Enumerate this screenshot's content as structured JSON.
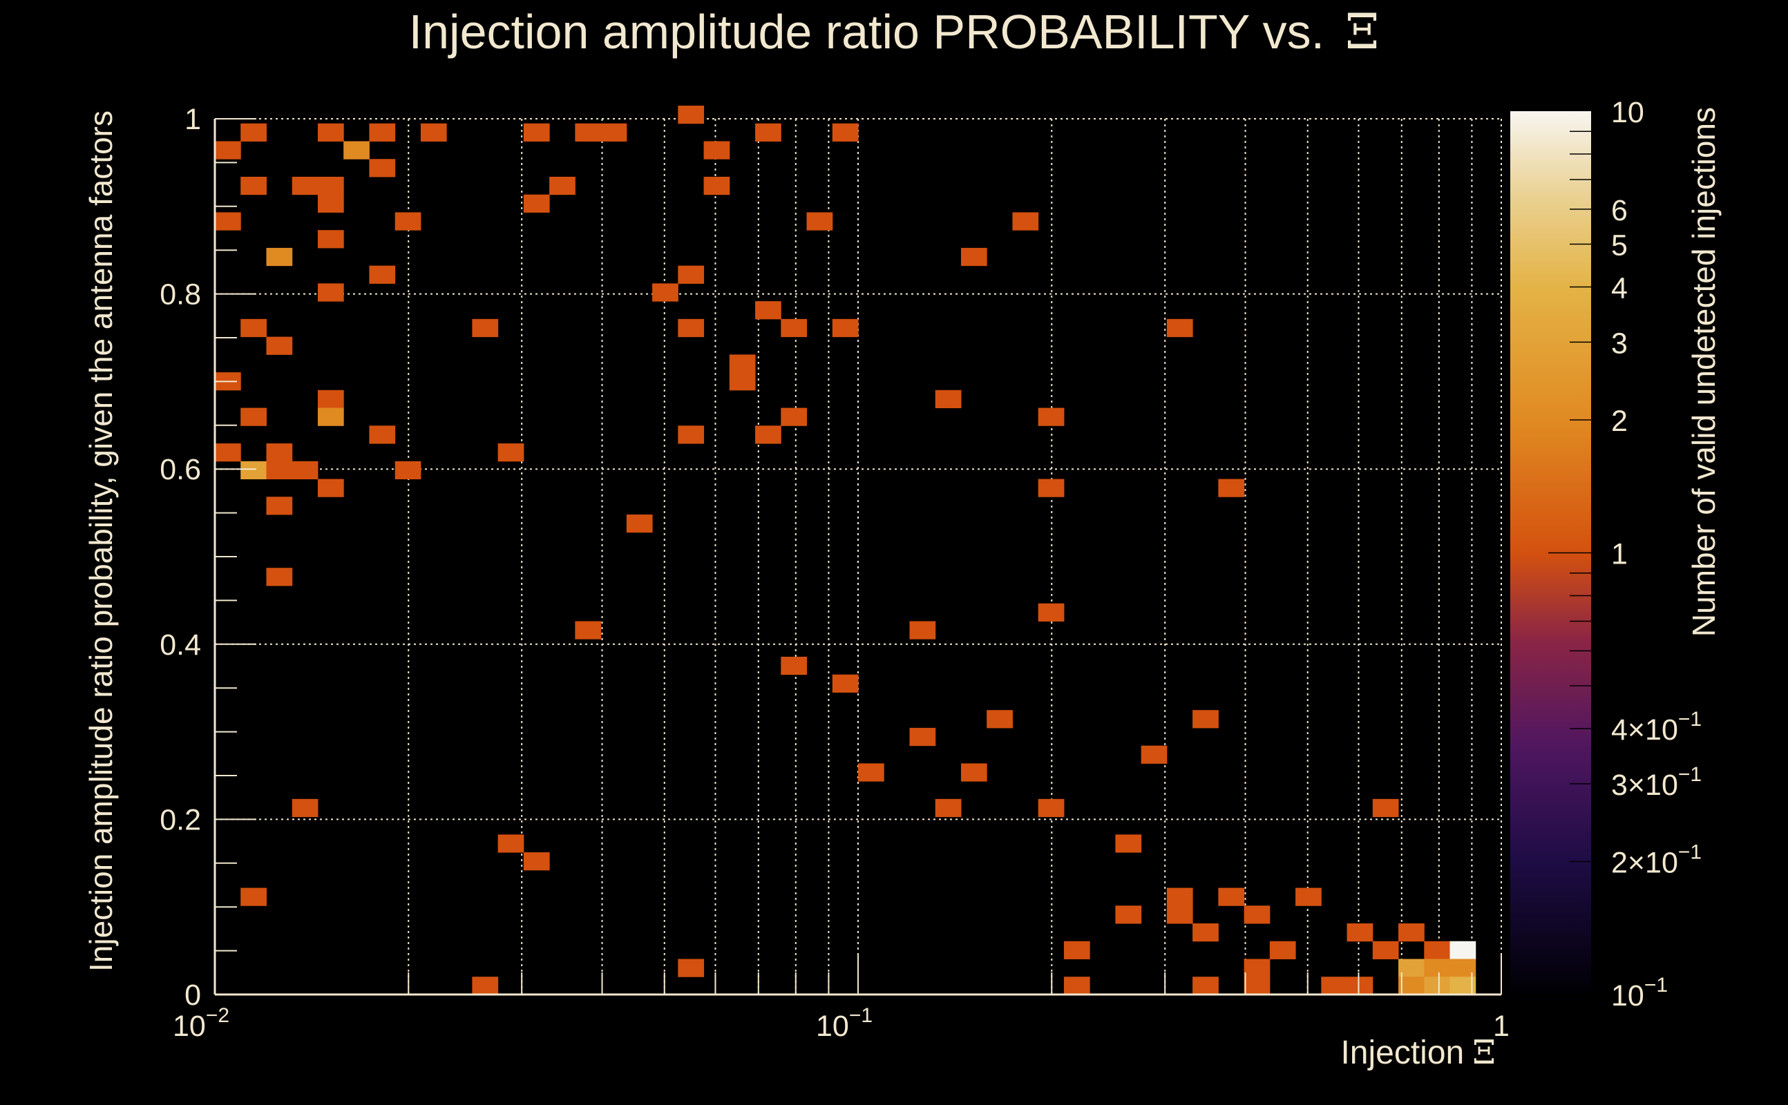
{
  "chart_data": {
    "type": "heatmap",
    "title": "Injection amplitude ratio PROBABILITY vs.",
    "title_symbol": "Ξ",
    "xlabel": "Injection",
    "xlabel_symbol": "Ξ",
    "ylabel": "Injection amplitude ratio probability, given the antenna factors",
    "zlabel": "Number of valid undetected injections",
    "x_scale": "log",
    "xlim": [
      0.01,
      1
    ],
    "ylim": [
      0,
      1
    ],
    "zlim": [
      0.1,
      10
    ],
    "z_scale": "log",
    "grid": true,
    "x_bins": {
      "count": 50,
      "min": 0.01,
      "max": 1,
      "scale": "log"
    },
    "y_bins": {
      "count": 50,
      "min": 0,
      "max": 1.015,
      "scale": "linear"
    },
    "x_ticks": [
      {
        "value": 0.01,
        "base": "10",
        "exp": "−2"
      },
      {
        "value": 0.1,
        "base": "10",
        "exp": "−1"
      },
      {
        "value": 1,
        "base": "1",
        "exp": ""
      }
    ],
    "y_ticks": [
      {
        "value": 0,
        "label": "0"
      },
      {
        "value": 0.2,
        "label": "0.2"
      },
      {
        "value": 0.4,
        "label": "0.4"
      },
      {
        "value": 0.6,
        "label": "0.6"
      },
      {
        "value": 0.8,
        "label": "0.8"
      },
      {
        "value": 1,
        "label": "1"
      }
    ],
    "z_ticks": [
      {
        "value": 10,
        "base": "10",
        "exp": ""
      },
      {
        "value": 6,
        "base": "6",
        "exp": ""
      },
      {
        "value": 5,
        "base": "5",
        "exp": ""
      },
      {
        "value": 4,
        "base": "4",
        "exp": ""
      },
      {
        "value": 3,
        "base": "3",
        "exp": ""
      },
      {
        "value": 2,
        "base": "2",
        "exp": ""
      },
      {
        "value": 1,
        "base": "1",
        "exp": ""
      },
      {
        "value": 0.4,
        "base": "4×10",
        "exp": "−1"
      },
      {
        "value": 0.3,
        "base": "3×10",
        "exp": "−1"
      },
      {
        "value": 0.2,
        "base": "2×10",
        "exp": "−1"
      },
      {
        "value": 0.1,
        "base": "10",
        "exp": "−1"
      }
    ],
    "colormap": [
      {
        "t": 0.0,
        "color": "#000004"
      },
      {
        "t": 0.15,
        "color": "#1e0c45"
      },
      {
        "t": 0.28,
        "color": "#4f1660"
      },
      {
        "t": 0.4,
        "color": "#8a2545"
      },
      {
        "t": 0.5,
        "color": "#d4510f"
      },
      {
        "t": 0.65,
        "color": "#e08a22"
      },
      {
        "t": 0.8,
        "color": "#e4b346"
      },
      {
        "t": 0.9,
        "color": "#e9d08f"
      },
      {
        "t": 1.0,
        "color": "#f7f5f0"
      }
    ],
    "cells_format": [
      "x_bin_index",
      "y_bin_index",
      "count"
    ],
    "cells": [
      [
        18,
        49,
        1
      ],
      [
        0,
        47,
        1
      ],
      [
        1,
        48,
        1
      ],
      [
        4,
        48,
        1
      ],
      [
        5,
        47,
        2
      ],
      [
        6,
        48,
        1
      ],
      [
        6,
        46,
        1
      ],
      [
        8,
        48,
        1
      ],
      [
        12,
        48,
        1
      ],
      [
        14,
        48,
        1
      ],
      [
        15,
        48,
        1
      ],
      [
        19,
        47,
        1
      ],
      [
        21,
        48,
        1
      ],
      [
        24,
        48,
        1
      ],
      [
        1,
        45,
        1
      ],
      [
        3,
        45,
        1
      ],
      [
        4,
        45,
        1
      ],
      [
        4,
        44,
        1
      ],
      [
        12,
        44,
        1
      ],
      [
        13,
        45,
        1
      ],
      [
        19,
        45,
        1
      ],
      [
        0,
        43,
        1
      ],
      [
        7,
        43,
        1
      ],
      [
        23,
        43,
        1
      ],
      [
        31,
        43,
        1
      ],
      [
        4,
        42,
        1
      ],
      [
        2,
        41,
        2
      ],
      [
        29,
        41,
        1
      ],
      [
        6,
        40,
        1
      ],
      [
        18,
        40,
        1
      ],
      [
        4,
        39,
        1
      ],
      [
        17,
        39,
        1
      ],
      [
        21,
        38,
        1
      ],
      [
        1,
        37,
        1
      ],
      [
        10,
        37,
        1
      ],
      [
        18,
        37,
        1
      ],
      [
        22,
        37,
        1
      ],
      [
        24,
        37,
        1
      ],
      [
        37,
        37,
        1
      ],
      [
        2,
        36,
        1
      ],
      [
        20,
        35,
        1
      ],
      [
        20,
        34,
        1
      ],
      [
        0,
        34,
        1
      ],
      [
        28,
        33,
        1
      ],
      [
        4,
        33,
        1
      ],
      [
        4,
        32,
        2
      ],
      [
        1,
        32,
        1
      ],
      [
        22,
        32,
        1
      ],
      [
        32,
        32,
        1
      ],
      [
        6,
        31,
        1
      ],
      [
        18,
        31,
        1
      ],
      [
        21,
        31,
        1
      ],
      [
        0,
        30,
        1
      ],
      [
        2,
        30,
        1
      ],
      [
        11,
        30,
        1
      ],
      [
        1,
        29,
        3
      ],
      [
        2,
        29,
        1
      ],
      [
        3,
        29,
        1
      ],
      [
        7,
        29,
        1
      ],
      [
        4,
        28,
        1
      ],
      [
        32,
        28,
        1
      ],
      [
        39,
        28,
        1
      ],
      [
        2,
        27,
        1
      ],
      [
        16,
        26,
        1
      ],
      [
        2,
        23,
        1
      ],
      [
        32,
        21,
        1
      ],
      [
        14,
        20,
        1
      ],
      [
        27,
        20,
        1
      ],
      [
        22,
        18,
        1
      ],
      [
        24,
        17,
        1
      ],
      [
        30,
        15,
        1
      ],
      [
        38,
        15,
        1
      ],
      [
        27,
        14,
        1
      ],
      [
        36,
        13,
        1
      ],
      [
        25,
        12,
        1
      ],
      [
        29,
        12,
        1
      ],
      [
        3,
        10,
        1
      ],
      [
        28,
        10,
        1
      ],
      [
        32,
        10,
        1
      ],
      [
        45,
        10,
        1
      ],
      [
        11,
        8,
        1
      ],
      [
        35,
        8,
        1
      ],
      [
        12,
        7,
        1
      ],
      [
        1,
        5,
        1
      ],
      [
        37,
        5,
        1
      ],
      [
        39,
        5,
        1
      ],
      [
        42,
        5,
        1
      ],
      [
        35,
        4,
        1
      ],
      [
        37,
        4,
        1
      ],
      [
        40,
        4,
        1
      ],
      [
        38,
        3,
        1
      ],
      [
        44,
        3,
        1
      ],
      [
        46,
        3,
        1
      ],
      [
        33,
        2,
        1
      ],
      [
        41,
        2,
        1
      ],
      [
        45,
        2,
        1
      ],
      [
        47,
        2,
        1
      ],
      [
        48,
        2,
        10
      ],
      [
        18,
        1,
        1
      ],
      [
        40,
        1,
        1
      ],
      [
        46,
        1,
        3
      ],
      [
        47,
        1,
        2
      ],
      [
        48,
        1,
        2
      ],
      [
        10,
        0,
        1
      ],
      [
        33,
        0,
        1
      ],
      [
        38,
        0,
        1
      ],
      [
        40,
        0,
        1
      ],
      [
        43,
        0,
        1
      ],
      [
        44,
        0,
        1
      ],
      [
        46,
        0,
        2
      ],
      [
        47,
        0,
        3
      ],
      [
        48,
        0,
        4
      ]
    ]
  }
}
